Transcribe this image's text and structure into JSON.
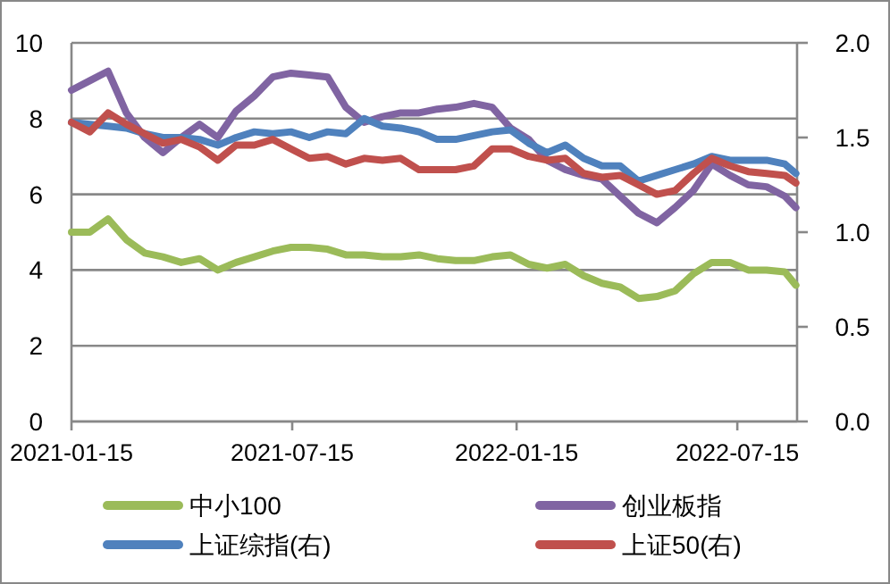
{
  "chart_data": {
    "type": "line",
    "x": [
      "2021-01-15",
      "2021-01-30",
      "2021-02-14",
      "2021-03-01",
      "2021-03-16",
      "2021-03-31",
      "2021-04-15",
      "2021-04-30",
      "2021-05-15",
      "2021-05-30",
      "2021-06-14",
      "2021-06-29",
      "2021-07-14",
      "2021-07-29",
      "2021-08-13",
      "2021-08-28",
      "2021-09-12",
      "2021-09-27",
      "2021-10-12",
      "2021-10-27",
      "2021-11-11",
      "2021-11-26",
      "2021-12-11",
      "2021-12-26",
      "2022-01-10",
      "2022-01-25",
      "2022-02-09",
      "2022-02-24",
      "2022-03-11",
      "2022-03-26",
      "2022-04-10",
      "2022-04-25",
      "2022-05-10",
      "2022-05-25",
      "2022-06-09",
      "2022-06-24",
      "2022-07-09",
      "2022-07-24",
      "2022-08-08",
      "2022-08-23",
      "2022-09-01"
    ],
    "series": [
      {
        "name": "中小100",
        "color": "#9bbb59",
        "values": [
          5.0,
          5.0,
          5.35,
          4.8,
          4.45,
          4.35,
          4.2,
          4.3,
          4.0,
          4.2,
          4.35,
          4.5,
          4.6,
          4.6,
          4.55,
          4.4,
          4.4,
          4.35,
          4.35,
          4.4,
          4.3,
          4.25,
          4.25,
          4.35,
          4.4,
          4.15,
          4.05,
          4.15,
          3.85,
          3.65,
          3.55,
          3.25,
          3.3,
          3.45,
          3.9,
          4.2,
          4.2,
          4.0,
          4.0,
          3.95,
          3.6
        ]
      },
      {
        "name": "创业板指",
        "color": "#8064a2",
        "values": [
          8.75,
          9.0,
          9.25,
          8.15,
          7.5,
          7.1,
          7.5,
          7.85,
          7.5,
          8.2,
          8.6,
          9.1,
          9.2,
          9.15,
          9.1,
          8.3,
          7.9,
          8.05,
          8.15,
          8.15,
          8.25,
          8.3,
          8.4,
          8.3,
          7.75,
          7.45,
          6.9,
          6.65,
          6.5,
          6.4,
          5.95,
          5.5,
          5.25,
          5.65,
          6.1,
          6.8,
          6.5,
          6.25,
          6.2,
          5.95,
          5.65
        ]
      },
      {
        "name": "上证综指(右)",
        "color": "#4f81bd",
        "axis": "y2",
        "values": [
          1.58,
          1.57,
          1.56,
          1.55,
          1.52,
          1.5,
          1.5,
          1.49,
          1.46,
          1.5,
          1.53,
          1.52,
          1.53,
          1.5,
          1.53,
          1.52,
          1.6,
          1.56,
          1.55,
          1.53,
          1.49,
          1.49,
          1.51,
          1.53,
          1.54,
          1.47,
          1.42,
          1.46,
          1.39,
          1.35,
          1.35,
          1.27,
          1.3,
          1.33,
          1.36,
          1.4,
          1.38,
          1.38,
          1.38,
          1.36,
          1.31
        ]
      },
      {
        "name": "上证50(右)",
        "color": "#c0504d",
        "axis": "y2",
        "values": [
          1.58,
          1.53,
          1.63,
          1.57,
          1.52,
          1.47,
          1.49,
          1.45,
          1.38,
          1.46,
          1.46,
          1.49,
          1.44,
          1.39,
          1.4,
          1.36,
          1.39,
          1.38,
          1.39,
          1.33,
          1.33,
          1.33,
          1.35,
          1.44,
          1.44,
          1.4,
          1.38,
          1.39,
          1.31,
          1.29,
          1.3,
          1.25,
          1.2,
          1.22,
          1.31,
          1.39,
          1.35,
          1.32,
          1.31,
          1.3,
          1.26
        ]
      }
    ],
    "xlim": [
      "2021-01-15",
      "2022-09-02"
    ],
    "xticks": [
      "2021-01-15",
      "2021-07-15",
      "2022-01-15",
      "2022-07-15"
    ],
    "ylim": [
      0,
      10
    ],
    "yticks": [
      0,
      2,
      4,
      6,
      8,
      10
    ],
    "y2lim": [
      0,
      2
    ],
    "y2ticks": [
      {
        "value": 0,
        "label": "0.0"
      },
      {
        "value": 0.5,
        "label": "0.5"
      },
      {
        "value": 1,
        "label": "1.0"
      },
      {
        "value": 1.5,
        "label": "1.5"
      },
      {
        "value": 2,
        "label": "2.0"
      }
    ],
    "grid": "y",
    "legend": "bottom",
    "marker": "none",
    "line_style": "solid"
  }
}
